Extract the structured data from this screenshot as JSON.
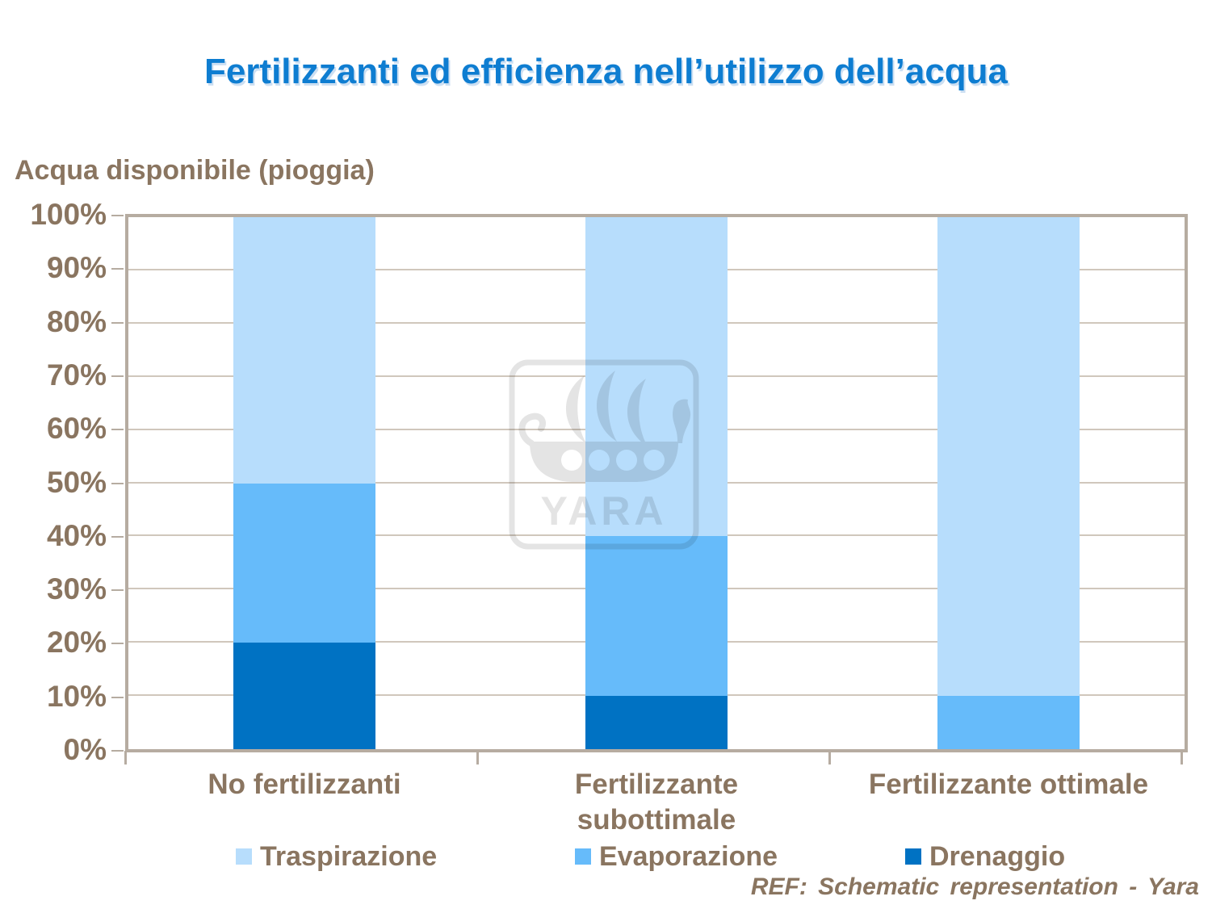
{
  "title": "Fertilizzanti ed efficienza nell’utilizzo dell’acqua",
  "y_axis_title": "Acqua disponibile (pioggia)",
  "watermark": {
    "text": "YARA"
  },
  "footer": {
    "ref_text": "REF: Schematic representation - Yara"
  },
  "colors": {
    "title": "#0e7dd1",
    "text_brown": "#8a7560",
    "frame": "#b6aca1",
    "gridline": "#d0c7bc",
    "traspirazione": "#b7ddfc",
    "evaporazione": "#66bbfa",
    "drenaggio": "#0072c3"
  },
  "chart_data": {
    "type": "bar",
    "stacked": true,
    "title": "Fertilizzanti ed efficienza nell’utilizzo dell’acqua",
    "ylabel": "Acqua disponibile (pioggia)",
    "categories": [
      "No fertilizzanti",
      "Fertilizzante\nsubottimale",
      "Fertilizzante ottimale"
    ],
    "series": [
      {
        "name": "Traspirazione",
        "color": "#b7ddfc",
        "values": [
          50,
          60,
          90
        ]
      },
      {
        "name": "Evaporazione",
        "color": "#66bbfa",
        "values": [
          30,
          30,
          10
        ]
      },
      {
        "name": "Drenaggio",
        "color": "#0072c3",
        "values": [
          20,
          10,
          0
        ]
      }
    ],
    "ylim": [
      0,
      100
    ],
    "ytick_labels": [
      "0%",
      "10%",
      "20%",
      "30%",
      "40%",
      "50%",
      "60%",
      "70%",
      "80%",
      "90%",
      "100%"
    ],
    "grid": true,
    "legend_position": "bottom",
    "legend": [
      "Traspirazione",
      "Evaporazione",
      "Drenaggio"
    ]
  }
}
